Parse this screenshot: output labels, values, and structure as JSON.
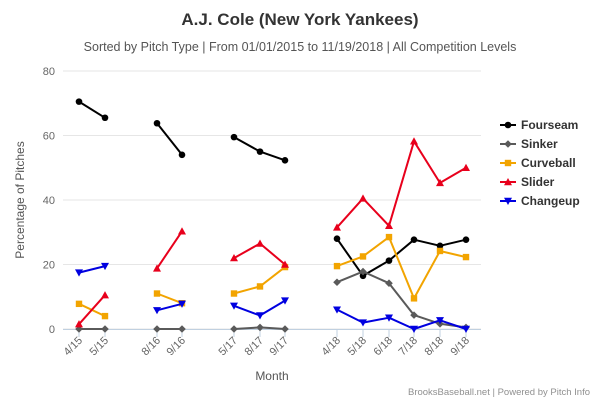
{
  "header": {
    "title": "A.J. Cole (New York Yankees)",
    "subtitle": "Sorted by Pitch Type | From 01/01/2015 to 11/19/2018 | All Competition Levels"
  },
  "credits": "BrooksBaseball.net | Powered by Pitch Info",
  "chart_data": {
    "type": "line",
    "xlabel": "Month",
    "ylabel": "Percentage of Pitches",
    "ylim": [
      0,
      80
    ],
    "yticks": [
      0,
      20,
      40,
      60,
      80
    ],
    "grid": true,
    "legend_position": "right",
    "categories": [
      "4/15",
      "5/15",
      "8/16",
      "9/16",
      "5/17",
      "8/17",
      "9/17",
      "4/18",
      "5/18",
      "6/18",
      "7/18",
      "8/18",
      "9/18"
    ],
    "segments": [
      [
        0,
        1
      ],
      [
        2,
        3
      ],
      [
        4,
        6
      ],
      [
        7,
        12
      ]
    ],
    "series": [
      {
        "name": "Fourseam",
        "color": "#000000",
        "marker": "circle",
        "values": [
          70.5,
          65.5,
          63.8,
          54,
          59.5,
          55,
          52.3,
          28,
          16.5,
          21.2,
          27.7,
          25.8,
          27.7
        ]
      },
      {
        "name": "Sinker",
        "color": "#5a5a5a",
        "marker": "diamond",
        "values": [
          0,
          0,
          0,
          0,
          0,
          0.5,
          0,
          14.5,
          17.8,
          14.2,
          4.3,
          1.6,
          0.5
        ]
      },
      {
        "name": "Curveball",
        "color": "#f2a400",
        "marker": "square",
        "values": [
          7.8,
          4,
          11,
          8,
          11,
          13.2,
          19.2,
          19.5,
          22.5,
          28.5,
          9.5,
          24.2,
          22.3
        ]
      },
      {
        "name": "Slider",
        "color": "#e8001c",
        "marker": "triangle-up",
        "values": [
          1.5,
          10.5,
          18.8,
          30.3,
          22,
          26.5,
          20,
          31.5,
          40.5,
          32,
          58.2,
          45.3,
          50
        ]
      },
      {
        "name": "Changeup",
        "color": "#0000e0",
        "marker": "triangle-down",
        "values": [
          17.5,
          19.5,
          5.8,
          7.8,
          7.2,
          4.2,
          8.8,
          6,
          2,
          3.5,
          0,
          2.7,
          0
        ]
      }
    ]
  }
}
